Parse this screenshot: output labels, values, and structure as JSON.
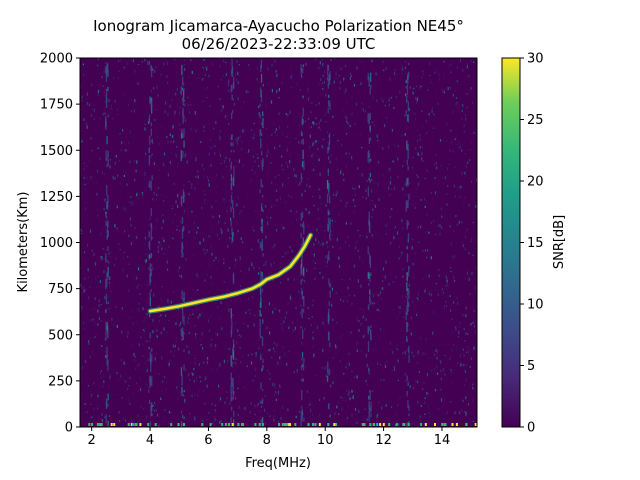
{
  "chart_data": {
    "type": "heatmap",
    "title_line1": "Ionogram Jicamarca-Ayacucho Polarization NE45°",
    "title_line2": "06/26/2023-22:33:09 UTC",
    "xlabel": "Freq(MHz)",
    "ylabel": "Kilometers(Km)",
    "xlim": [
      1.6,
      15.2
    ],
    "ylim": [
      0,
      2000
    ],
    "x_ticks": [
      "2",
      "4",
      "6",
      "8",
      "10",
      "12",
      "14"
    ],
    "x_tick_values": [
      2,
      4,
      6,
      8,
      10,
      12,
      14
    ],
    "y_ticks": [
      "0",
      "250",
      "500",
      "750",
      "1000",
      "1250",
      "1500",
      "1750",
      "2000"
    ],
    "y_tick_values": [
      0,
      250,
      500,
      750,
      1000,
      1250,
      1500,
      1750,
      2000
    ],
    "colorbar": {
      "label": "SNR[dB]",
      "range": [
        0,
        30
      ],
      "ticks": [
        "0",
        "5",
        "10",
        "15",
        "20",
        "25",
        "30"
      ],
      "tick_values": [
        0,
        5,
        10,
        15,
        20,
        25,
        30
      ],
      "colormap": "viridis"
    },
    "trace": [
      {
        "freq": 4.0,
        "km": 628
      },
      {
        "freq": 4.5,
        "km": 640
      },
      {
        "freq": 5.0,
        "km": 655
      },
      {
        "freq": 5.5,
        "km": 672
      },
      {
        "freq": 6.0,
        "km": 690
      },
      {
        "freq": 6.5,
        "km": 705
      },
      {
        "freq": 7.0,
        "km": 725
      },
      {
        "freq": 7.5,
        "km": 750
      },
      {
        "freq": 7.8,
        "km": 775
      },
      {
        "freq": 8.0,
        "km": 800
      },
      {
        "freq": 8.4,
        "km": 825
      },
      {
        "freq": 8.8,
        "km": 870
      },
      {
        "freq": 9.1,
        "km": 930
      },
      {
        "freq": 9.3,
        "km": 980
      },
      {
        "freq": 9.5,
        "km": 1040
      }
    ],
    "vertical_bands_mhz": [
      2.5,
      4.0,
      5.1,
      6.8,
      7.8,
      9.2,
      10.1,
      11.5,
      12.8
    ]
  },
  "colors": {
    "viridis_low": "#440154",
    "viridis_mid": "#21908d",
    "viridis_high": "#fde725"
  }
}
